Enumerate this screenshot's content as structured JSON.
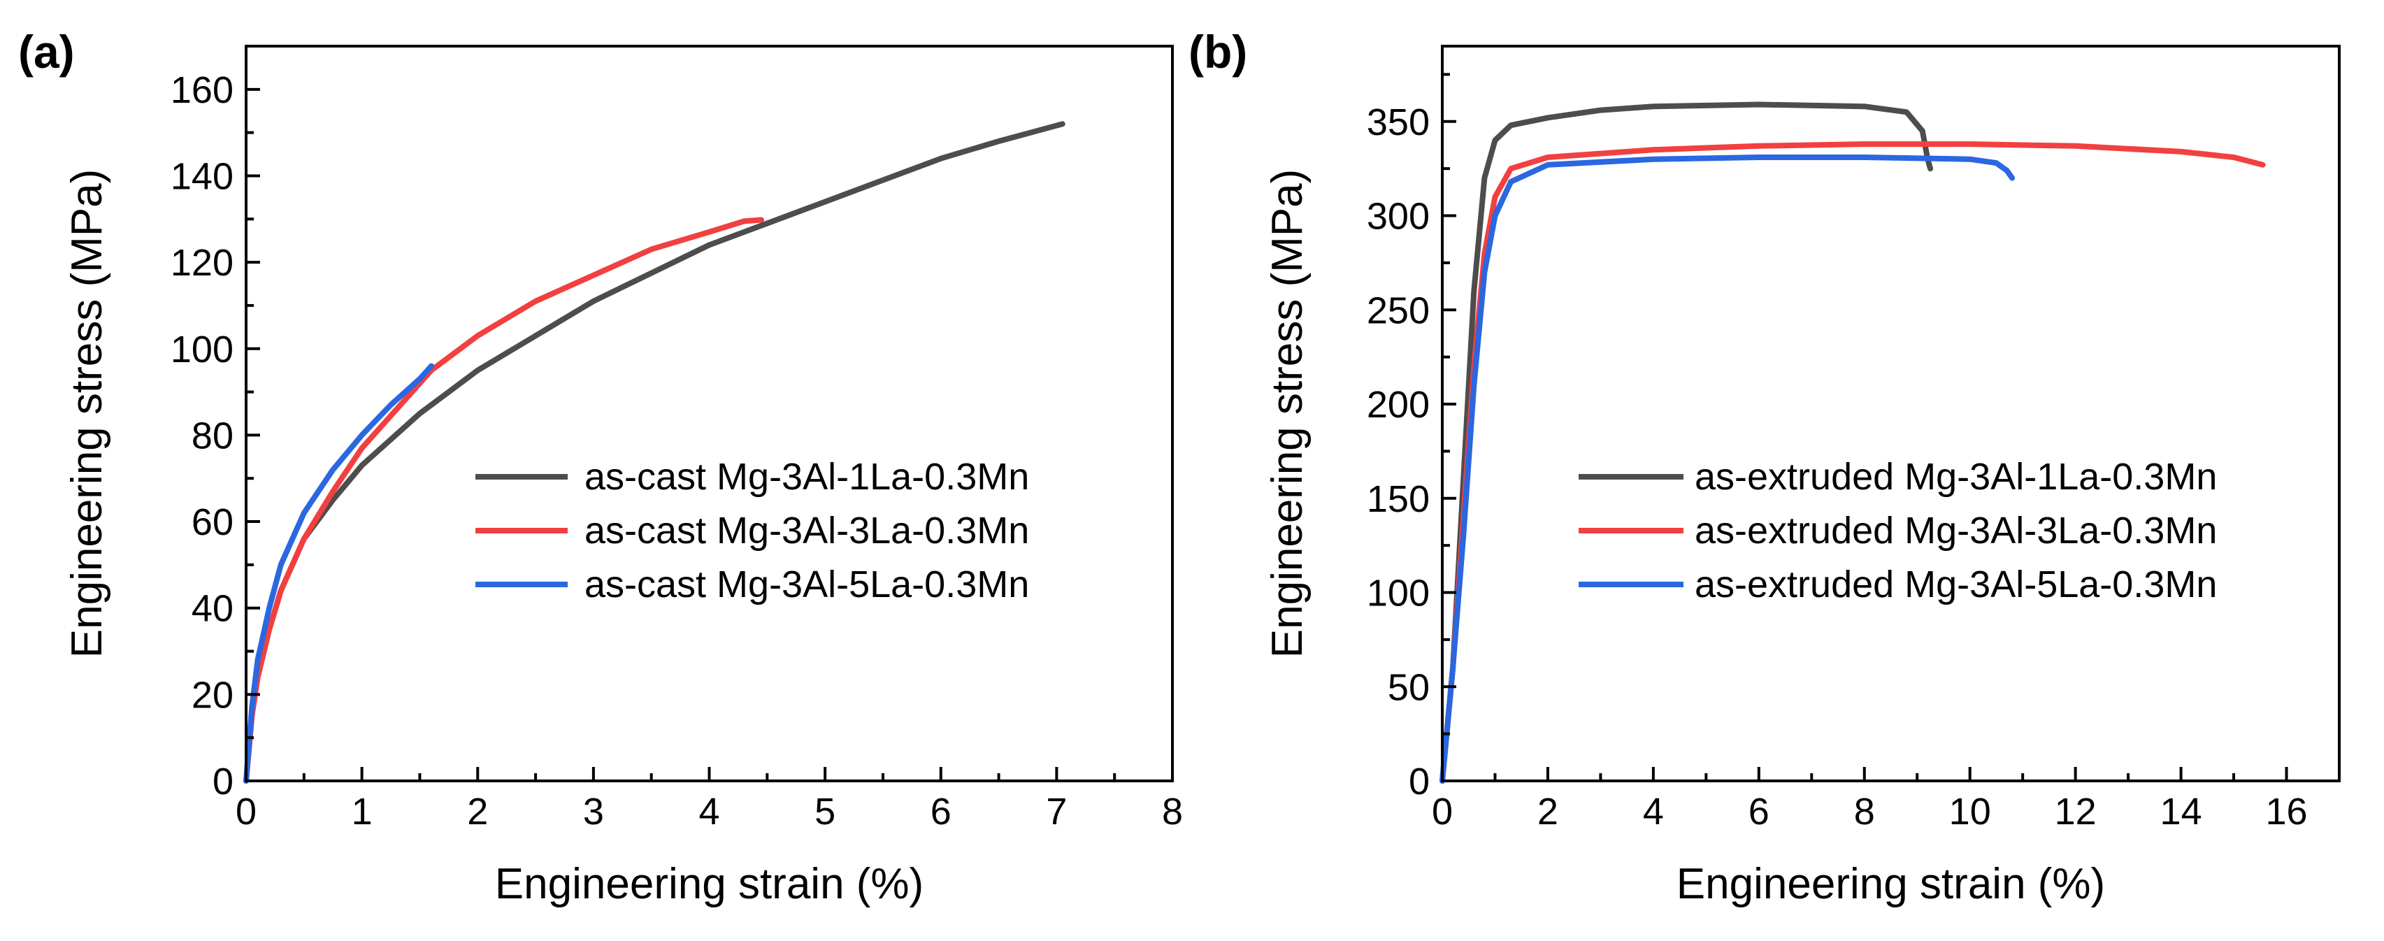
{
  "chart_data": [
    {
      "type": "line",
      "panel_label": "(a)",
      "xlabel": "Engineering strain (%)",
      "ylabel": "Engineering stress (MPa)",
      "xlim": [
        0,
        8
      ],
      "ylim": [
        0,
        170
      ],
      "xticks": [
        0,
        1,
        2,
        3,
        4,
        5,
        6,
        7,
        8
      ],
      "yticks": [
        0,
        20,
        40,
        60,
        80,
        100,
        120,
        140,
        160
      ],
      "grid": false,
      "legend_position": "right",
      "series": [
        {
          "name": "as-cast Mg-3Al-1La-0.3Mn",
          "color": "#4d4d4d",
          "points": [
            [
              0,
              0
            ],
            [
              0.05,
              15
            ],
            [
              0.1,
              24
            ],
            [
              0.2,
              35
            ],
            [
              0.3,
              44
            ],
            [
              0.5,
              56
            ],
            [
              0.75,
              65
            ],
            [
              1,
              73
            ],
            [
              1.5,
              85
            ],
            [
              2,
              95
            ],
            [
              3,
              111
            ],
            [
              4,
              124
            ],
            [
              5,
              134
            ],
            [
              6,
              144
            ],
            [
              6.5,
              148
            ],
            [
              7.05,
              152
            ]
          ]
        },
        {
          "name": "as-cast Mg-3Al-3La-0.3Mn",
          "color": "#f24040",
          "points": [
            [
              0,
              0
            ],
            [
              0.05,
              15
            ],
            [
              0.1,
              24
            ],
            [
              0.2,
              35
            ],
            [
              0.3,
              44
            ],
            [
              0.5,
              56
            ],
            [
              0.75,
              67
            ],
            [
              1,
              77
            ],
            [
              1.6,
              95
            ],
            [
              2,
              103
            ],
            [
              2.5,
              111
            ],
            [
              3,
              117
            ],
            [
              3.5,
              123
            ],
            [
              4,
              127
            ],
            [
              4.3,
              129.5
            ],
            [
              4.45,
              129.8
            ]
          ]
        },
        {
          "name": "as-cast Mg-3Al-5La-0.3Mn",
          "color": "#2a67e0",
          "points": [
            [
              0,
              0
            ],
            [
              0.05,
              17
            ],
            [
              0.1,
              28
            ],
            [
              0.2,
              40
            ],
            [
              0.3,
              50
            ],
            [
              0.5,
              62
            ],
            [
              0.75,
              72
            ],
            [
              1,
              80
            ],
            [
              1.25,
              87
            ],
            [
              1.5,
              93
            ],
            [
              1.6,
              96
            ]
          ]
        }
      ]
    },
    {
      "type": "line",
      "panel_label": "(b)",
      "xlabel": "Engineering strain (%)",
      "ylabel": "Engineering stress (MPa)",
      "xlim": [
        0,
        17
      ],
      "ylim": [
        0,
        390
      ],
      "xticks": [
        0,
        2,
        4,
        6,
        8,
        10,
        12,
        14,
        16
      ],
      "yticks": [
        0,
        50,
        100,
        150,
        200,
        250,
        300,
        350
      ],
      "grid": false,
      "legend_position": "right",
      "series": [
        {
          "name": "as-extruded Mg-3Al-1La-0.3Mn",
          "color": "#4d4d4d",
          "points": [
            [
              0,
              0
            ],
            [
              0.2,
              60
            ],
            [
              0.4,
              160
            ],
            [
              0.6,
              260
            ],
            [
              0.8,
              320
            ],
            [
              1,
              340
            ],
            [
              1.3,
              348
            ],
            [
              2,
              352
            ],
            [
              3,
              356
            ],
            [
              4,
              358
            ],
            [
              6,
              359
            ],
            [
              8,
              358
            ],
            [
              8.8,
              355
            ],
            [
              9.1,
              345
            ],
            [
              9.2,
              330
            ],
            [
              9.25,
              325
            ]
          ]
        },
        {
          "name": "as-extruded Mg-3Al-3La-0.3Mn",
          "color": "#f24040",
          "points": [
            [
              0,
              0
            ],
            [
              0.2,
              60
            ],
            [
              0.4,
              140
            ],
            [
              0.6,
              220
            ],
            [
              0.8,
              280
            ],
            [
              1,
              310
            ],
            [
              1.3,
              325
            ],
            [
              2,
              331
            ],
            [
              4,
              335
            ],
            [
              6,
              337
            ],
            [
              8,
              338
            ],
            [
              10,
              338
            ],
            [
              12,
              337
            ],
            [
              14,
              334
            ],
            [
              15,
              331
            ],
            [
              15.55,
              327
            ]
          ]
        },
        {
          "name": "as-extruded Mg-3Al-5La-0.3Mn",
          "color": "#2a67e0",
          "points": [
            [
              0,
              0
            ],
            [
              0.2,
              60
            ],
            [
              0.4,
              130
            ],
            [
              0.6,
              210
            ],
            [
              0.8,
              270
            ],
            [
              1,
              300
            ],
            [
              1.3,
              318
            ],
            [
              2,
              327
            ],
            [
              4,
              330
            ],
            [
              6,
              331
            ],
            [
              8,
              331
            ],
            [
              10,
              330
            ],
            [
              10.5,
              328
            ],
            [
              10.7,
              324
            ],
            [
              10.8,
              320
            ]
          ]
        }
      ]
    }
  ]
}
